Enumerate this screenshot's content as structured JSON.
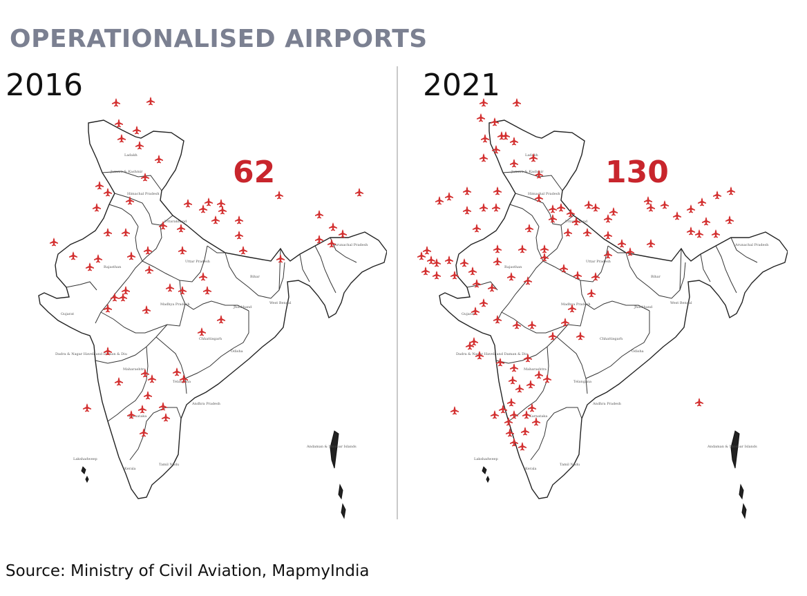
{
  "title": "OPERATIONALISED AIRPORTS",
  "panels": [
    {
      "year": "2016",
      "count": "62"
    },
    {
      "year": "2021",
      "count": "130"
    }
  ],
  "source": "Source: Ministry of Civil Aviation, MapmyIndia",
  "colors": {
    "title": "#7b8091",
    "count": "#c8252c",
    "airport_marker": "#d32f2f",
    "divider": "#c9c9c9"
  },
  "marker_icon": "airplane-icon",
  "state_labels": [
    "Ladakh",
    "Jammu & Kashmir",
    "Himachal Pradesh",
    "Uttarakhand",
    "Rajasthan",
    "Uttar Pradesh",
    "Bihar",
    "Gujarat",
    "Madhya Pradesh",
    "Jharkhand",
    "West Bengal",
    "Maharashtra",
    "Chhattisgarh",
    "Odisha",
    "Telangana",
    "Andhra Pradesh",
    "Karnataka",
    "Tamil Nadu",
    "Kerala",
    "Lakshadweep",
    "Andaman & Nicobar Islands",
    "Arunachal Pradesh",
    "Dadra & Nagar Haveli and Daman & Diu"
  ]
}
